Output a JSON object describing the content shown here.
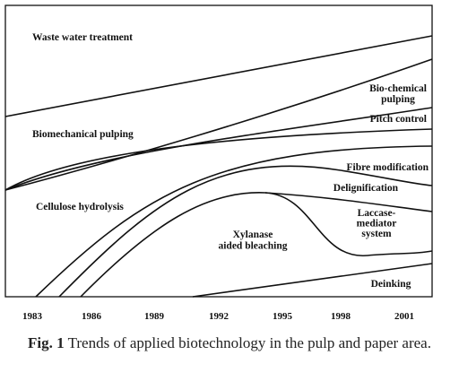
{
  "chart_data": {
    "type": "area",
    "x_ticks": [
      "1983",
      "1986",
      "1989",
      "1992",
      "1995",
      "1998",
      "2001"
    ],
    "regions": [
      {
        "name": "Waste water treatment",
        "lines": [
          "Waste water treatment"
        ]
      },
      {
        "name": "Bio-chemical pulping",
        "lines": [
          "Bio-chemical",
          "pulping"
        ]
      },
      {
        "name": "Pitch control",
        "lines": [
          "Pitch control"
        ]
      },
      {
        "name": "Biomechanical pulping",
        "lines": [
          "Biomechanical pulping"
        ]
      },
      {
        "name": "Fibre modification",
        "lines": [
          "Fibre modification"
        ]
      },
      {
        "name": "Delignification",
        "lines": [
          "Delignification"
        ]
      },
      {
        "name": "Cellulose hydrolysis",
        "lines": [
          "Cellulose hydrolysis"
        ]
      },
      {
        "name": "Laccase-mediator system",
        "lines": [
          "Laccase-",
          "mediator",
          "system"
        ]
      },
      {
        "name": "Xylanase aided bleaching",
        "lines": [
          "Xylanase",
          "aided bleaching"
        ]
      },
      {
        "name": "Deinking",
        "lines": [
          "Deinking"
        ]
      }
    ],
    "grid": false,
    "legend": "none"
  },
  "caption": {
    "prefix": "Fig. 1",
    "text": " Trends of applied biotechnology in the pulp and paper area."
  }
}
